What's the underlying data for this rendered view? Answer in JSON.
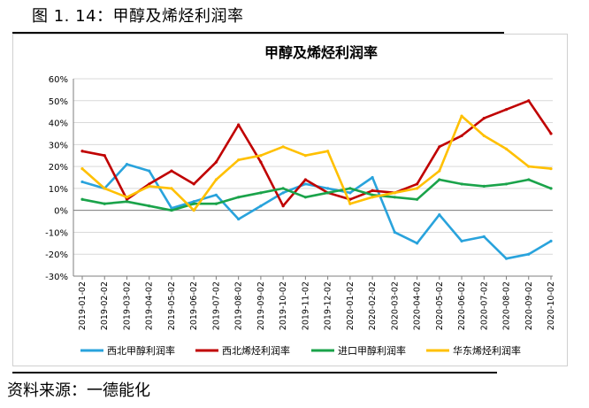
{
  "figure_title": "图 1. 14：甲醇及烯烃利润率",
  "source_text": "资料来源：一德能化",
  "colors": {
    "series": [
      "#29a3dc",
      "#c00000",
      "#1aa34a",
      "#ffc000"
    ],
    "grid": "#d9d9d9",
    "axis": "#7f7f7f"
  },
  "chart_data": {
    "type": "line",
    "title": "甲醇及烯烃利润率",
    "xlabel": "",
    "ylabel": "",
    "ylim": [
      -0.3,
      0.6
    ],
    "yticks": [
      "60%",
      "50%",
      "40%",
      "30%",
      "20%",
      "10%",
      "0%",
      "-10%",
      "-20%",
      "-30%"
    ],
    "grid": "horizontal",
    "legend_position": "bottom",
    "x": [
      "2019-01-02",
      "2019-02-02",
      "2019-03-02",
      "2019-04-02",
      "2019-05-02",
      "2019-06-02",
      "2019-07-02",
      "2019-08-02",
      "2019-09-02",
      "2019-10-02",
      "2019-11-02",
      "2019-12-02",
      "2020-01-02",
      "2020-02-02",
      "2020-03-02",
      "2020-04-02",
      "2020-05-02",
      "2020-06-02",
      "2020-07-02",
      "2020-08-02",
      "2020-09-02",
      "2020-10-02"
    ],
    "series": [
      {
        "name": "西北甲醇利润率",
        "values": [
          0.13,
          0.1,
          0.21,
          0.18,
          0.01,
          0.04,
          0.07,
          -0.04,
          0.02,
          0.08,
          0.12,
          0.1,
          0.08,
          0.15,
          -0.1,
          -0.15,
          -0.02,
          -0.14,
          -0.12,
          -0.22,
          -0.2,
          -0.14
        ]
      },
      {
        "name": "西北烯烃利润率",
        "values": [
          0.27,
          0.25,
          0.05,
          0.12,
          0.18,
          0.12,
          0.22,
          0.39,
          0.22,
          0.02,
          0.14,
          0.08,
          0.05,
          0.09,
          0.08,
          0.12,
          0.29,
          0.34,
          0.42,
          0.46,
          0.5,
          0.35
        ]
      },
      {
        "name": "进口甲醇利润率",
        "values": [
          0.05,
          0.03,
          0.04,
          0.02,
          0.0,
          0.03,
          0.03,
          0.06,
          0.08,
          0.1,
          0.06,
          0.08,
          0.1,
          0.07,
          0.06,
          0.05,
          0.14,
          0.12,
          0.11,
          0.12,
          0.14,
          0.1
        ]
      },
      {
        "name": "华东烯烃利润率",
        "values": [
          0.19,
          0.1,
          0.06,
          0.11,
          0.1,
          0.0,
          0.14,
          0.23,
          0.25,
          0.29,
          0.25,
          0.27,
          0.03,
          0.06,
          0.08,
          0.1,
          0.18,
          0.43,
          0.34,
          0.28,
          0.2,
          0.19
        ]
      }
    ]
  }
}
